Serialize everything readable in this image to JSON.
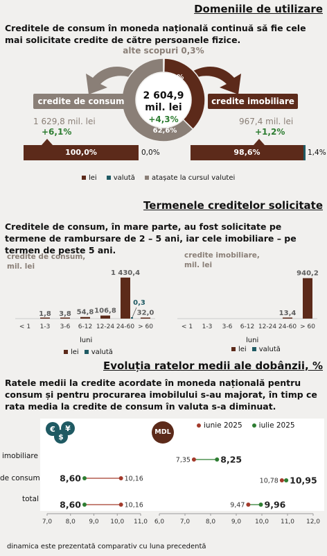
{
  "s1": {
    "title": "Domeniile de utilizare",
    "lead": "Creditele de consum în moneda națională continuă să fie cele mai solicitate credite de către persoanele fizice.",
    "other_label": "alte scopuri 0,3%",
    "center_value": "2 604,9",
    "center_unit": "mil. lei",
    "center_change": "+4,3%",
    "donut_pct_top": "37,1%",
    "donut_pct_bottom": "62,6%",
    "consum": {
      "label": "credite de consum",
      "value": "1 629,8 mil. lei",
      "change": "+6,1%",
      "bar_pct": "100,0%",
      "bar_right": "0,0%"
    },
    "imobiliare": {
      "label": "credite imobiliare",
      "value": "967,4 mil. lei",
      "change": "+1,2%",
      "bar_pct": "98,6%",
      "bar_right": "1,4%"
    },
    "legend": [
      "lei",
      "valută",
      "atașate la cursul valutei"
    ]
  },
  "s2": {
    "title": "Termenele creditelor solicitate",
    "lead": "Creditele de consum, în mare parte, au fost solicitate pe termene de rambursare de  2 – 5 ani, iar cele imobiliare – pe termen de peste 5 ani.",
    "xlabel": "luni",
    "legend": [
      "lei",
      "valută"
    ]
  },
  "s3": {
    "title": "Evoluția ratelor medii ale dobânzii, %",
    "lead": "Ratele medii la credite acordate în moneda națională pentru consum și pentru procurarea imobilului s-au majorat, în timp ce rata media la credite de consum în valuta s-a diminuat.",
    "badge_left": "€$¥",
    "badge_right": "MDL",
    "legend": [
      "iunie 2025",
      "iulie 2025"
    ],
    "rows": [
      "imobiliare",
      "de consum",
      "total"
    ]
  },
  "footnote": "dinamica este prezentată comparativ cu luna precedentă",
  "colors": {
    "lei": "#5c2a1a",
    "valuta": "#1f5a63",
    "atasate": "#8a7f77",
    "green": "#2e7d32",
    "red": "#a33a2b"
  },
  "chart_data": [
    {
      "type": "pie",
      "title": "",
      "categories": [
        "credite de consum",
        "credite imobiliare",
        "alte scopuri"
      ],
      "values": [
        62.6,
        37.1,
        0.3
      ]
    },
    {
      "type": "bar",
      "title": "credite de consum, mil. lei",
      "categories": [
        "< 1",
        "1-3",
        "3-6",
        "6-12",
        "12-24",
        "24-60",
        "> 60"
      ],
      "series": [
        {
          "name": "lei",
          "values": [
            null,
            1.8,
            3.8,
            54.8,
            106.8,
            1430.4,
            32.0
          ]
        },
        {
          "name": "valută",
          "values": [
            null,
            null,
            null,
            null,
            null,
            0.3,
            null
          ]
        }
      ],
      "labels": [
        "",
        "1,8",
        "3,8",
        "54,8",
        "106,8",
        "1 430,4",
        "32,0"
      ],
      "valuta_label": "0,3",
      "ylim": [
        0,
        1500
      ]
    },
    {
      "type": "bar",
      "title": "credite imobiliare, mil. lei",
      "categories": [
        "< 1",
        "1-3",
        "3-6",
        "6-12",
        "12-24",
        "24-60",
        "> 60"
      ],
      "series": [
        {
          "name": "lei",
          "values": [
            null,
            null,
            null,
            null,
            null,
            13.4,
            940.2
          ]
        }
      ],
      "labels": [
        "",
        "",
        "",
        "",
        "",
        "13,4",
        "940,2"
      ],
      "ylim": [
        0,
        1000
      ]
    },
    {
      "type": "scatter",
      "title": "valută",
      "categories": [
        "imobiliare",
        "de consum",
        "total"
      ],
      "series": [
        {
          "name": "iunie 2025",
          "values": [
            null,
            10.16,
            10.16
          ]
        },
        {
          "name": "iulie 2025",
          "values": [
            null,
            8.6,
            8.6
          ]
        }
      ],
      "labels_iunie": [
        "",
        "10,16",
        "10,16"
      ],
      "labels_iulie": [
        "",
        "8,60",
        "8,60"
      ],
      "xlim": [
        7.0,
        11.0
      ],
      "ticks": [
        "7,0",
        "8,0",
        "9,0",
        "10,0",
        "11,0"
      ]
    },
    {
      "type": "scatter",
      "title": "MDL",
      "categories": [
        "imobiliare",
        "de consum",
        "total"
      ],
      "series": [
        {
          "name": "iunie 2025",
          "values": [
            7.35,
            10.78,
            9.47
          ]
        },
        {
          "name": "iulie 2025",
          "values": [
            8.25,
            10.95,
            9.96
          ]
        }
      ],
      "labels_iunie": [
        "7,35",
        "10,78",
        "9,47"
      ],
      "labels_iulie": [
        "8,25",
        "10,95",
        "9,96"
      ],
      "xlim": [
        6.0,
        12.0
      ],
      "ticks": [
        "6,0",
        "7,0",
        "8,0",
        "9,0",
        "10,0",
        "11,0",
        "12,0"
      ]
    }
  ]
}
